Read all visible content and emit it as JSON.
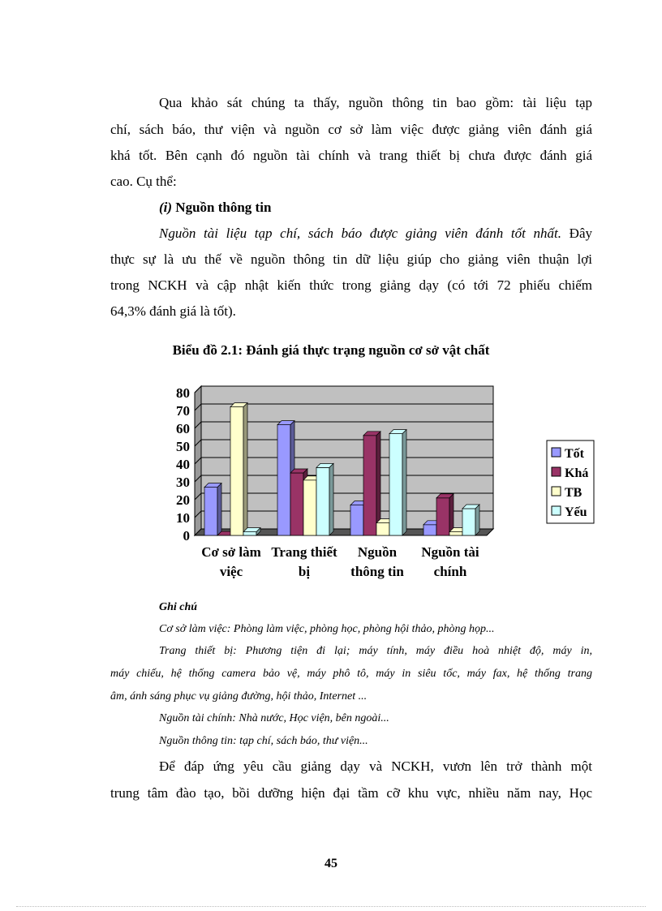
{
  "para1": [
    "Qua khảo sát chúng ta thấy, nguồn thông tin bao gồm: tài liệu tạp",
    "chí, sách báo, thư viện và nguồn cơ sở làm việc được giảng viên đánh giá",
    "khá tốt. Bên cạnh đó nguồn tài chính và trang thiết bị chưa được đánh giá",
    "cao. Cụ thể:"
  ],
  "heading_num": "(i)",
  "heading": "Nguồn thông tin",
  "para2_italic": "Nguồn tài liệu tạp chí, sách báo được giảng viên đánh tốt nhất.",
  "para2": [
    " Đây",
    "thực sự là ưu thế về nguồn thông tin dữ liệu giúp cho giảng viên thuận lợi",
    "trong NCKH và cập nhật kiến thức trong giảng dạy (có tới 72 phiếu chiếm",
    "64,3% đánh giá là tốt)."
  ],
  "chart_title": "Biểu đồ 2.1: Đánh giá thực trạng nguồn cơ sở vật chất",
  "chart_data": {
    "type": "bar",
    "style": "3d-clustered-column",
    "categories": [
      [
        "Cơ sở làm",
        "việc"
      ],
      [
        "Trang thiết",
        "bị"
      ],
      [
        "Nguồn",
        "thông tin"
      ],
      [
        "Nguồn tài",
        "chính"
      ]
    ],
    "series": [
      {
        "name": "Tốt",
        "color": "#9999ff",
        "values": [
          27,
          62,
          17,
          6
        ]
      },
      {
        "name": "Khá",
        "color": "#993366",
        "values": [
          0,
          35,
          56,
          21
        ]
      },
      {
        "name": "TB",
        "color": "#ffffcc",
        "values": [
          72,
          31,
          7,
          2
        ]
      },
      {
        "name": "Yếu",
        "color": "#ccffff",
        "values": [
          2,
          38,
          57,
          15
        ]
      }
    ],
    "ylim": [
      0,
      80
    ],
    "yticks": [
      0,
      10,
      20,
      30,
      40,
      50,
      60,
      70,
      80
    ],
    "grid": true,
    "legend": "right",
    "wall_color": "#c0c0c0"
  },
  "notes_title": "Ghi chú",
  "notes": [
    "Cơ sở làm việc: Phòng làm việc, phòng học, phòng hội thảo, phòng họp...",
    "Trang thiết bị:  Phương tiện đi lại; máy tính, máy điều hoà nhiệt độ, máy in,",
    "máy chiếu, hệ thống camera bảo vệ, máy phô tô, máy in siêu tốc, máy fax, hệ thống trang",
    "âm, ánh sáng phục vụ giảng đường, hội thảo, Internet ...",
    "Nguồn tài chính: Nhà nước, Học viện, bên ngoài...",
    "Nguồn thông tin: tạp chí, sách báo, thư viện..."
  ],
  "para3": [
    "Để đáp ứng yêu cầu giảng dạy và NCKH, vươn lên trở thành một",
    "trung tâm đào tạo, bồi dưỡng hiện đại tầm cỡ khu vực, nhiều năm nay, Học"
  ],
  "page_number": "45"
}
